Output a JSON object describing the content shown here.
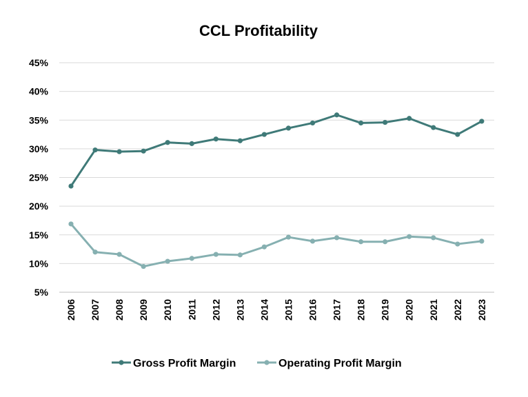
{
  "chart_data": {
    "type": "line",
    "title": "CCL Profitability",
    "xlabel": "",
    "ylabel": "",
    "categories": [
      "2006",
      "2007",
      "2008",
      "2009",
      "2010",
      "2011",
      "2012",
      "2013",
      "2014",
      "2015",
      "2016",
      "2017",
      "2018",
      "2019",
      "2020",
      "2021",
      "2022",
      "2023"
    ],
    "y_ticks": [
      "5%",
      "10%",
      "15%",
      "20%",
      "25%",
      "30%",
      "35%",
      "40%",
      "45%"
    ],
    "ylim": [
      5,
      45
    ],
    "grid": true,
    "legend_position": "bottom",
    "series": [
      {
        "name": "Gross Profit Margin",
        "color": "#3f7a78",
        "values": [
          23.5,
          29.8,
          29.5,
          29.6,
          31.1,
          30.9,
          31.7,
          31.4,
          32.5,
          33.6,
          34.5,
          35.9,
          34.5,
          34.6,
          35.3,
          33.7,
          32.5,
          34.8
        ]
      },
      {
        "name": "Operating Profit Margin",
        "color": "#86b0b1",
        "values": [
          16.9,
          12.0,
          11.6,
          9.5,
          10.4,
          10.9,
          11.6,
          11.5,
          12.9,
          14.6,
          13.9,
          14.5,
          13.8,
          13.8,
          14.7,
          14.5,
          13.4,
          13.9
        ]
      }
    ]
  }
}
